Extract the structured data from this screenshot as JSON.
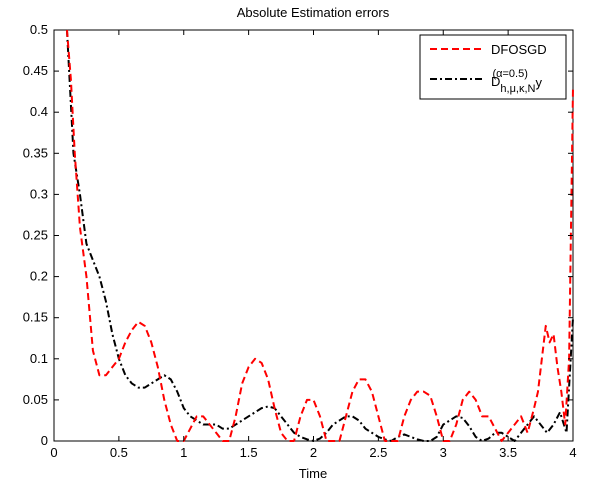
{
  "chart_data": {
    "type": "line",
    "title": "Absolute Estimation errors",
    "xlabel": "Time",
    "ylabel": "",
    "xlim": [
      0,
      4
    ],
    "ylim": [
      0,
      0.5
    ],
    "xticks": [
      0,
      0.5,
      1,
      1.5,
      2,
      2.5,
      3,
      3.5,
      4
    ],
    "xtick_labels": [
      "0",
      "0.5",
      "1",
      "1.5",
      "2",
      "2.5",
      "3",
      "3.5",
      "4"
    ],
    "yticks": [
      0,
      0.05,
      0.1,
      0.15,
      0.2,
      0.25,
      0.3,
      0.35,
      0.4,
      0.45,
      0.5
    ],
    "ytick_labels": [
      "0",
      "0.05",
      "0.1",
      "0.15",
      "0.2",
      "0.25",
      "0.3",
      "0.35",
      "0.4",
      "0.45",
      "0.5"
    ],
    "grid": false,
    "legend_position": "top-right",
    "series": [
      {
        "name": "DFOSGD",
        "color": "#ff0000",
        "style": "dashed",
        "x": [
          0.1,
          0.13,
          0.16,
          0.2,
          0.25,
          0.3,
          0.35,
          0.4,
          0.45,
          0.5,
          0.55,
          0.6,
          0.65,
          0.7,
          0.75,
          0.8,
          0.85,
          0.9,
          0.95,
          1.0,
          1.05,
          1.1,
          1.15,
          1.2,
          1.25,
          1.3,
          1.35,
          1.4,
          1.45,
          1.5,
          1.55,
          1.6,
          1.65,
          1.7,
          1.75,
          1.8,
          1.85,
          1.9,
          1.95,
          2.0,
          2.05,
          2.1,
          2.15,
          2.2,
          2.25,
          2.3,
          2.35,
          2.4,
          2.45,
          2.5,
          2.55,
          2.6,
          2.65,
          2.7,
          2.75,
          2.8,
          2.85,
          2.9,
          2.95,
          3.0,
          3.05,
          3.1,
          3.15,
          3.2,
          3.25,
          3.3,
          3.35,
          3.4,
          3.45,
          3.5,
          3.55,
          3.6,
          3.65,
          3.7,
          3.73,
          3.76,
          3.79,
          3.82,
          3.85,
          3.88,
          3.91,
          3.94,
          3.97,
          4.0
        ],
        "y": [
          0.5,
          0.44,
          0.35,
          0.26,
          0.2,
          0.11,
          0.08,
          0.08,
          0.09,
          0.1,
          0.12,
          0.135,
          0.145,
          0.14,
          0.12,
          0.09,
          0.05,
          0.02,
          0.0,
          0.0,
          0.015,
          0.03,
          0.03,
          0.02,
          0.01,
          0.0,
          0.0,
          0.03,
          0.07,
          0.09,
          0.1,
          0.095,
          0.075,
          0.04,
          0.01,
          0.0,
          0.0,
          0.03,
          0.05,
          0.05,
          0.03,
          0.0,
          0.0,
          0.0,
          0.03,
          0.06,
          0.075,
          0.075,
          0.06,
          0.03,
          0.0,
          0.0,
          0.0,
          0.03,
          0.05,
          0.06,
          0.06,
          0.055,
          0.03,
          0.0,
          0.0,
          0.02,
          0.05,
          0.06,
          0.05,
          0.03,
          0.03,
          0.015,
          0.0,
          0.01,
          0.02,
          0.03,
          0.01,
          0.04,
          0.06,
          0.1,
          0.14,
          0.12,
          0.13,
          0.09,
          0.06,
          0.02,
          0.1,
          0.43
        ]
      },
      {
        "name": "D_{h,μ,κ,N}^{(α=0.5)} y",
        "color": "#000000",
        "style": "dashdot",
        "x": [
          0.1,
          0.15,
          0.2,
          0.25,
          0.3,
          0.35,
          0.4,
          0.45,
          0.5,
          0.55,
          0.6,
          0.65,
          0.7,
          0.75,
          0.8,
          0.85,
          0.9,
          0.95,
          1.0,
          1.05,
          1.1,
          1.15,
          1.2,
          1.25,
          1.3,
          1.35,
          1.4,
          1.45,
          1.5,
          1.55,
          1.6,
          1.65,
          1.7,
          1.75,
          1.8,
          1.85,
          1.9,
          1.95,
          2.0,
          2.05,
          2.1,
          2.15,
          2.2,
          2.25,
          2.3,
          2.35,
          2.4,
          2.45,
          2.5,
          2.55,
          2.6,
          2.65,
          2.7,
          2.75,
          2.8,
          2.85,
          2.9,
          2.95,
          3.0,
          3.05,
          3.1,
          3.15,
          3.2,
          3.25,
          3.3,
          3.35,
          3.4,
          3.45,
          3.5,
          3.55,
          3.6,
          3.65,
          3.7,
          3.75,
          3.8,
          3.85,
          3.9,
          3.95,
          4.0
        ],
        "y": [
          0.5,
          0.35,
          0.3,
          0.24,
          0.22,
          0.2,
          0.17,
          0.13,
          0.1,
          0.08,
          0.07,
          0.065,
          0.065,
          0.07,
          0.075,
          0.08,
          0.075,
          0.06,
          0.04,
          0.03,
          0.025,
          0.02,
          0.02,
          0.02,
          0.015,
          0.015,
          0.02,
          0.025,
          0.03,
          0.035,
          0.04,
          0.042,
          0.04,
          0.03,
          0.02,
          0.01,
          0.005,
          0.002,
          0.0,
          0.003,
          0.01,
          0.02,
          0.025,
          0.03,
          0.03,
          0.025,
          0.015,
          0.01,
          0.005,
          0.002,
          0.0,
          0.005,
          0.008,
          0.005,
          0.002,
          0.0,
          0.0,
          0.005,
          0.02,
          0.025,
          0.03,
          0.028,
          0.018,
          0.005,
          0.0,
          0.003,
          0.01,
          0.01,
          0.005,
          0.0,
          0.01,
          0.02,
          0.03,
          0.02,
          0.01,
          0.02,
          0.035,
          0.01,
          0.15
        ]
      }
    ]
  }
}
